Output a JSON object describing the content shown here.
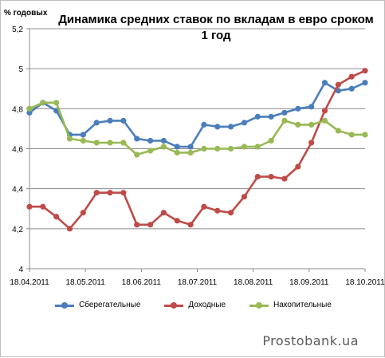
{
  "chart_data": {
    "type": "line",
    "title_line1": "Динамика средних ставок по вкладам в евро сроком",
    "title_line2": "1 год",
    "ylabel": "% годовых",
    "ylim": [
      4,
      5.2
    ],
    "yticks": [
      "5,2",
      "5",
      "4,8",
      "4,6",
      "4,4",
      "4,2",
      "4"
    ],
    "xticks": [
      "18.04.2011",
      "18.05.2011",
      "18.06.2011",
      "18.07.2011",
      "18.08.2011",
      "18.09.2011",
      "18.10.2011"
    ],
    "grid": "horizontal",
    "legend_position": "bottom",
    "series": [
      {
        "name": "Сберегательные",
        "color": "#4a7ebb",
        "values": [
          4.78,
          4.83,
          4.79,
          4.67,
          4.67,
          4.73,
          4.74,
          4.74,
          4.65,
          4.64,
          4.64,
          4.61,
          4.61,
          4.72,
          4.71,
          4.71,
          4.73,
          4.76,
          4.76,
          4.78,
          4.8,
          4.81,
          4.93,
          4.89,
          4.9,
          4.93
        ]
      },
      {
        "name": "Доходные",
        "color": "#be4b48",
        "values": [
          4.31,
          4.31,
          4.26,
          4.2,
          4.28,
          4.38,
          4.38,
          4.38,
          4.22,
          4.22,
          4.28,
          4.24,
          4.22,
          4.31,
          4.29,
          4.28,
          4.36,
          4.46,
          4.46,
          4.45,
          4.51,
          4.63,
          4.79,
          4.92,
          4.96,
          4.99
        ]
      },
      {
        "name": "Накопительные",
        "color": "#98b954",
        "values": [
          4.8,
          4.83,
          4.83,
          4.65,
          4.64,
          4.63,
          4.63,
          4.63,
          4.57,
          4.59,
          4.61,
          4.58,
          4.58,
          4.6,
          4.6,
          4.6,
          4.61,
          4.61,
          4.64,
          4.74,
          4.72,
          4.72,
          4.74,
          4.69,
          4.67,
          4.67
        ]
      }
    ]
  },
  "watermark": "Prostobank.ua"
}
